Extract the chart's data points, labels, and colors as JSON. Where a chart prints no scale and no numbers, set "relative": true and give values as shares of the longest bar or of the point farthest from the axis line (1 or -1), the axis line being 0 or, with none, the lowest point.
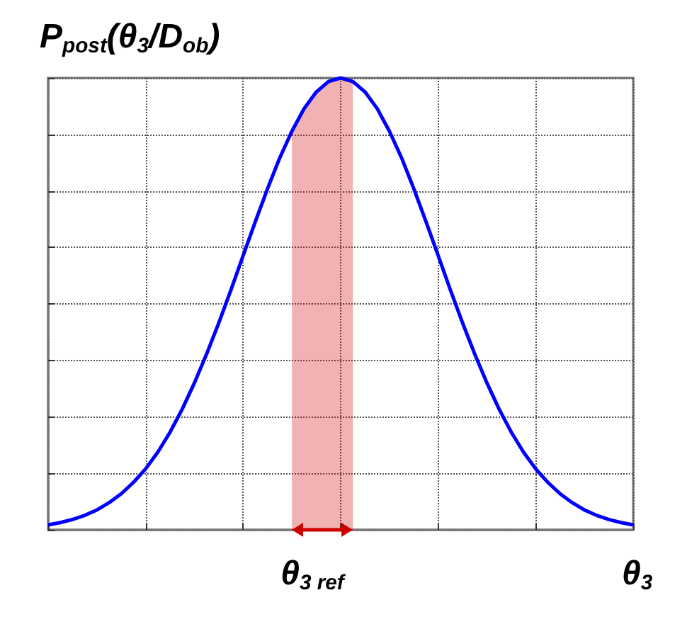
{
  "chart_data": {
    "type": "line",
    "ylabel": "P$_{post}$(θ$_{3}$/D$_{ob}$)",
    "xlabel": "θ$_{3}$",
    "relative": true,
    "grid": true,
    "marker": "none",
    "line_style": "solid",
    "legend": "bottom",
    "categories": [
      null,
      null,
      null,
      null,
      null,
      null,
      null,
      null,
      null,
      null,
      null,
      null,
      null,
      null,
      null,
      null,
      null,
      null,
      null,
      null,
      null,
      null,
      null,
      null,
      null,
      null,
      null,
      null,
      null,
      null,
      null,
      null,
      null,
      null,
      null,
      null,
      null,
      null,
      null,
      null,
      null,
      null,
      null,
      null,
      null,
      null,
      null,
      null,
      null
    ],
    "series": [
      {
        "color": "#0000ff",
        "values": [
          0.011,
          0.016,
          0.023,
          0.032,
          0.044,
          0.06,
          0.08,
          0.105,
          0.135,
          0.172,
          0.216,
          0.267,
          0.325,
          0.389,
          0.458,
          0.531,
          0.607,
          0.682,
          0.755,
          0.823,
          0.882,
          0.932,
          0.969,
          0.992,
          1,
          0.992,
          0.969,
          0.932,
          0.882,
          0.823,
          0.755,
          0.682,
          0.607,
          0.531,
          0.458,
          0.389,
          0.325,
          0.267,
          0.216,
          0.172,
          0.135,
          0.105,
          0.08,
          0.06,
          0.044,
          0.032,
          0.023,
          0.016,
          0.011
        ]
      },
      {
        "type": "area",
        "name": "θ$_{3 ref}$",
        "color": "#cc0000",
        "values": [
          null,
          null,
          null,
          null,
          null,
          null,
          null,
          null,
          null,
          null,
          null,
          null,
          null,
          null,
          null,
          null,
          null,
          null,
          null,
          null,
          0.882,
          0.932,
          0.969,
          0.992,
          1,
          0.992,
          null,
          null,
          null,
          null,
          null,
          null,
          null,
          null,
          null,
          null,
          null,
          null,
          null,
          null,
          null,
          null,
          null,
          null,
          null,
          null,
          null,
          null,
          null
        ]
      }
    ]
  }
}
